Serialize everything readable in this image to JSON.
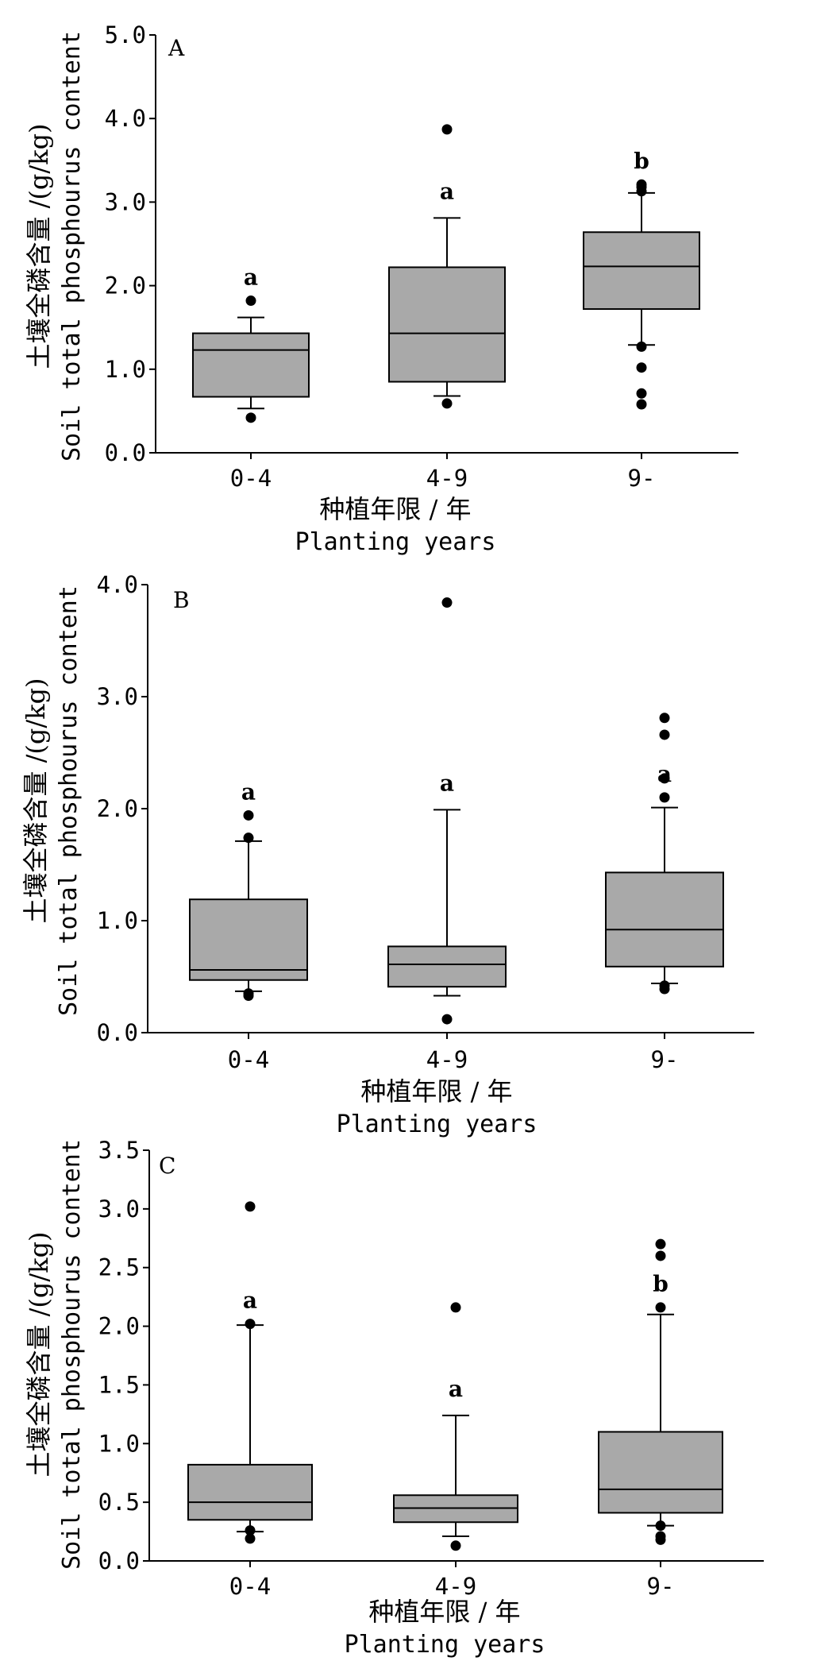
{
  "chart_data": [
    {
      "type": "boxplot",
      "panel": "A",
      "xlabel_cn": "种植年限 / 年",
      "xlabel_en": "Planting years",
      "ylabel_cn": "土壤全磷含量 /(g/kg)",
      "ylabel_en": "Soil total phosphourus content",
      "ylim": [
        0,
        5.0
      ],
      "yticks": [
        "0.0",
        "1.0",
        "2.0",
        "3.0",
        "4.0",
        "5.0"
      ],
      "ytick_values": [
        0,
        1,
        2,
        3,
        4,
        5
      ],
      "categories": [
        "0-4",
        "4-9",
        "9-"
      ],
      "boxes": [
        {
          "whisker_low": 0.53,
          "q1": 0.67,
          "median": 1.23,
          "q3": 1.43,
          "whisker_high": 1.62,
          "outliers": [
            0.42,
            1.82
          ],
          "letter": "a"
        },
        {
          "whisker_low": 0.68,
          "q1": 0.85,
          "median": 1.43,
          "q3": 2.22,
          "whisker_high": 2.81,
          "outliers": [
            0.59,
            3.87
          ],
          "letter": "a"
        },
        {
          "whisker_low": 1.29,
          "q1": 1.72,
          "median": 2.23,
          "q3": 2.64,
          "whisker_high": 3.11,
          "outliers": [
            0.58,
            0.71,
            1.02,
            1.27,
            3.13,
            3.18,
            3.21
          ],
          "letter": "b"
        }
      ]
    },
    {
      "type": "boxplot",
      "panel": "B",
      "xlabel_cn": "种植年限 / 年",
      "xlabel_en": "Planting years",
      "ylabel_cn": "土壤全磷含量 /(g/kg)",
      "ylabel_en": "Soil total phosphourus content",
      "ylim": [
        0,
        4.0
      ],
      "yticks": [
        "0.0",
        "1.0",
        "2.0",
        "3.0",
        "4.0"
      ],
      "ytick_values": [
        0,
        1,
        2,
        3,
        4
      ],
      "categories": [
        "0-4",
        "4-9",
        "9-"
      ],
      "boxes": [
        {
          "whisker_low": 0.37,
          "q1": 0.47,
          "median": 0.56,
          "q3": 1.19,
          "whisker_high": 1.71,
          "outliers": [
            0.33,
            0.35,
            1.74,
            1.94
          ],
          "letter": "a"
        },
        {
          "whisker_low": 0.33,
          "q1": 0.41,
          "median": 0.61,
          "q3": 0.77,
          "whisker_high": 1.99,
          "outliers": [
            0.12,
            3.84
          ],
          "letter": "a"
        },
        {
          "whisker_low": 0.44,
          "q1": 0.59,
          "median": 0.92,
          "q3": 1.43,
          "whisker_high": 2.01,
          "outliers": [
            0.39,
            0.42,
            2.1,
            2.27,
            2.66,
            2.81
          ],
          "letter": "a"
        }
      ]
    },
    {
      "type": "boxplot",
      "panel": "C",
      "xlabel_cn": "种植年限 / 年",
      "xlabel_en": "Planting years",
      "ylabel_cn": "土壤全磷含量 /(g/kg)",
      "ylabel_en": "Soil total phosphourus content",
      "ylim": [
        0,
        3.5
      ],
      "yticks": [
        "0.0",
        "0.5",
        "1.0",
        "1.5",
        "2.0",
        "2.5",
        "3.0",
        "3.5"
      ],
      "ytick_values": [
        0,
        0.5,
        1,
        1.5,
        2,
        2.5,
        3,
        3.5
      ],
      "categories": [
        "0-4",
        "4-9",
        "9-"
      ],
      "boxes": [
        {
          "whisker_low": 0.25,
          "q1": 0.35,
          "median": 0.5,
          "q3": 0.82,
          "whisker_high": 2.01,
          "outliers": [
            0.19,
            0.26,
            2.02,
            3.02
          ],
          "letter": "a"
        },
        {
          "whisker_low": 0.21,
          "q1": 0.33,
          "median": 0.45,
          "q3": 0.56,
          "whisker_high": 1.24,
          "outliers": [
            0.13,
            2.16
          ],
          "letter": "a"
        },
        {
          "whisker_low": 0.3,
          "q1": 0.41,
          "median": 0.61,
          "q3": 1.1,
          "whisker_high": 2.1,
          "outliers": [
            0.18,
            0.21,
            0.3,
            2.16,
            2.6,
            2.7
          ],
          "letter": "b"
        }
      ]
    }
  ]
}
